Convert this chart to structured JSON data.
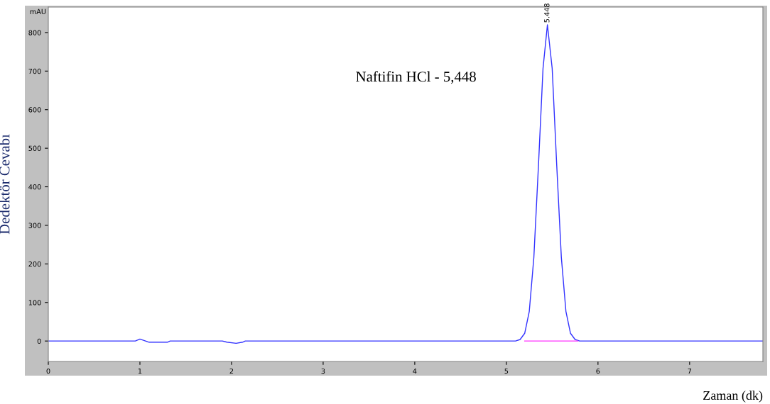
{
  "chart_data": {
    "type": "line",
    "xlabel": "Zaman (dk)",
    "ylabel": "Dedektör Cevabı",
    "annotations": [
      "Naftifin HCl - 5,448",
      "mAU",
      {
        "text": "5.448",
        "x": 5.448,
        "y": 820
      }
    ],
    "series": [
      {
        "color": "#3333ff",
        "x": [
          0,
          0.95,
          1.0,
          1.05,
          1.1,
          1.3,
          1.33,
          1.9,
          1.95,
          2.05,
          2.12,
          2.15,
          5.1,
          5.15,
          5.2,
          5.25,
          5.3,
          5.35,
          5.4,
          5.448,
          5.5,
          5.55,
          5.6,
          5.65,
          5.7,
          5.75,
          5.8,
          7.8
        ],
        "values": [
          0,
          0,
          5,
          1,
          -3,
          -3,
          0,
          0,
          -3,
          -6,
          -3,
          0,
          0,
          4,
          20,
          77,
          217,
          454,
          707,
          820,
          707,
          454,
          217,
          77,
          20,
          4,
          0,
          0
        ]
      },
      {
        "color": "#ff33ff",
        "x": [
          5.2,
          5.78
        ],
        "values": [
          0,
          0
        ]
      }
    ],
    "xlim": [
      0,
      7.8
    ],
    "ylim": [
      -53,
      866
    ],
    "xticks": [
      0,
      1,
      2,
      3,
      4,
      5,
      6,
      7
    ],
    "yticks": [
      0,
      100,
      200,
      300,
      400,
      500,
      600,
      700,
      800
    ],
    "legend": false
  }
}
